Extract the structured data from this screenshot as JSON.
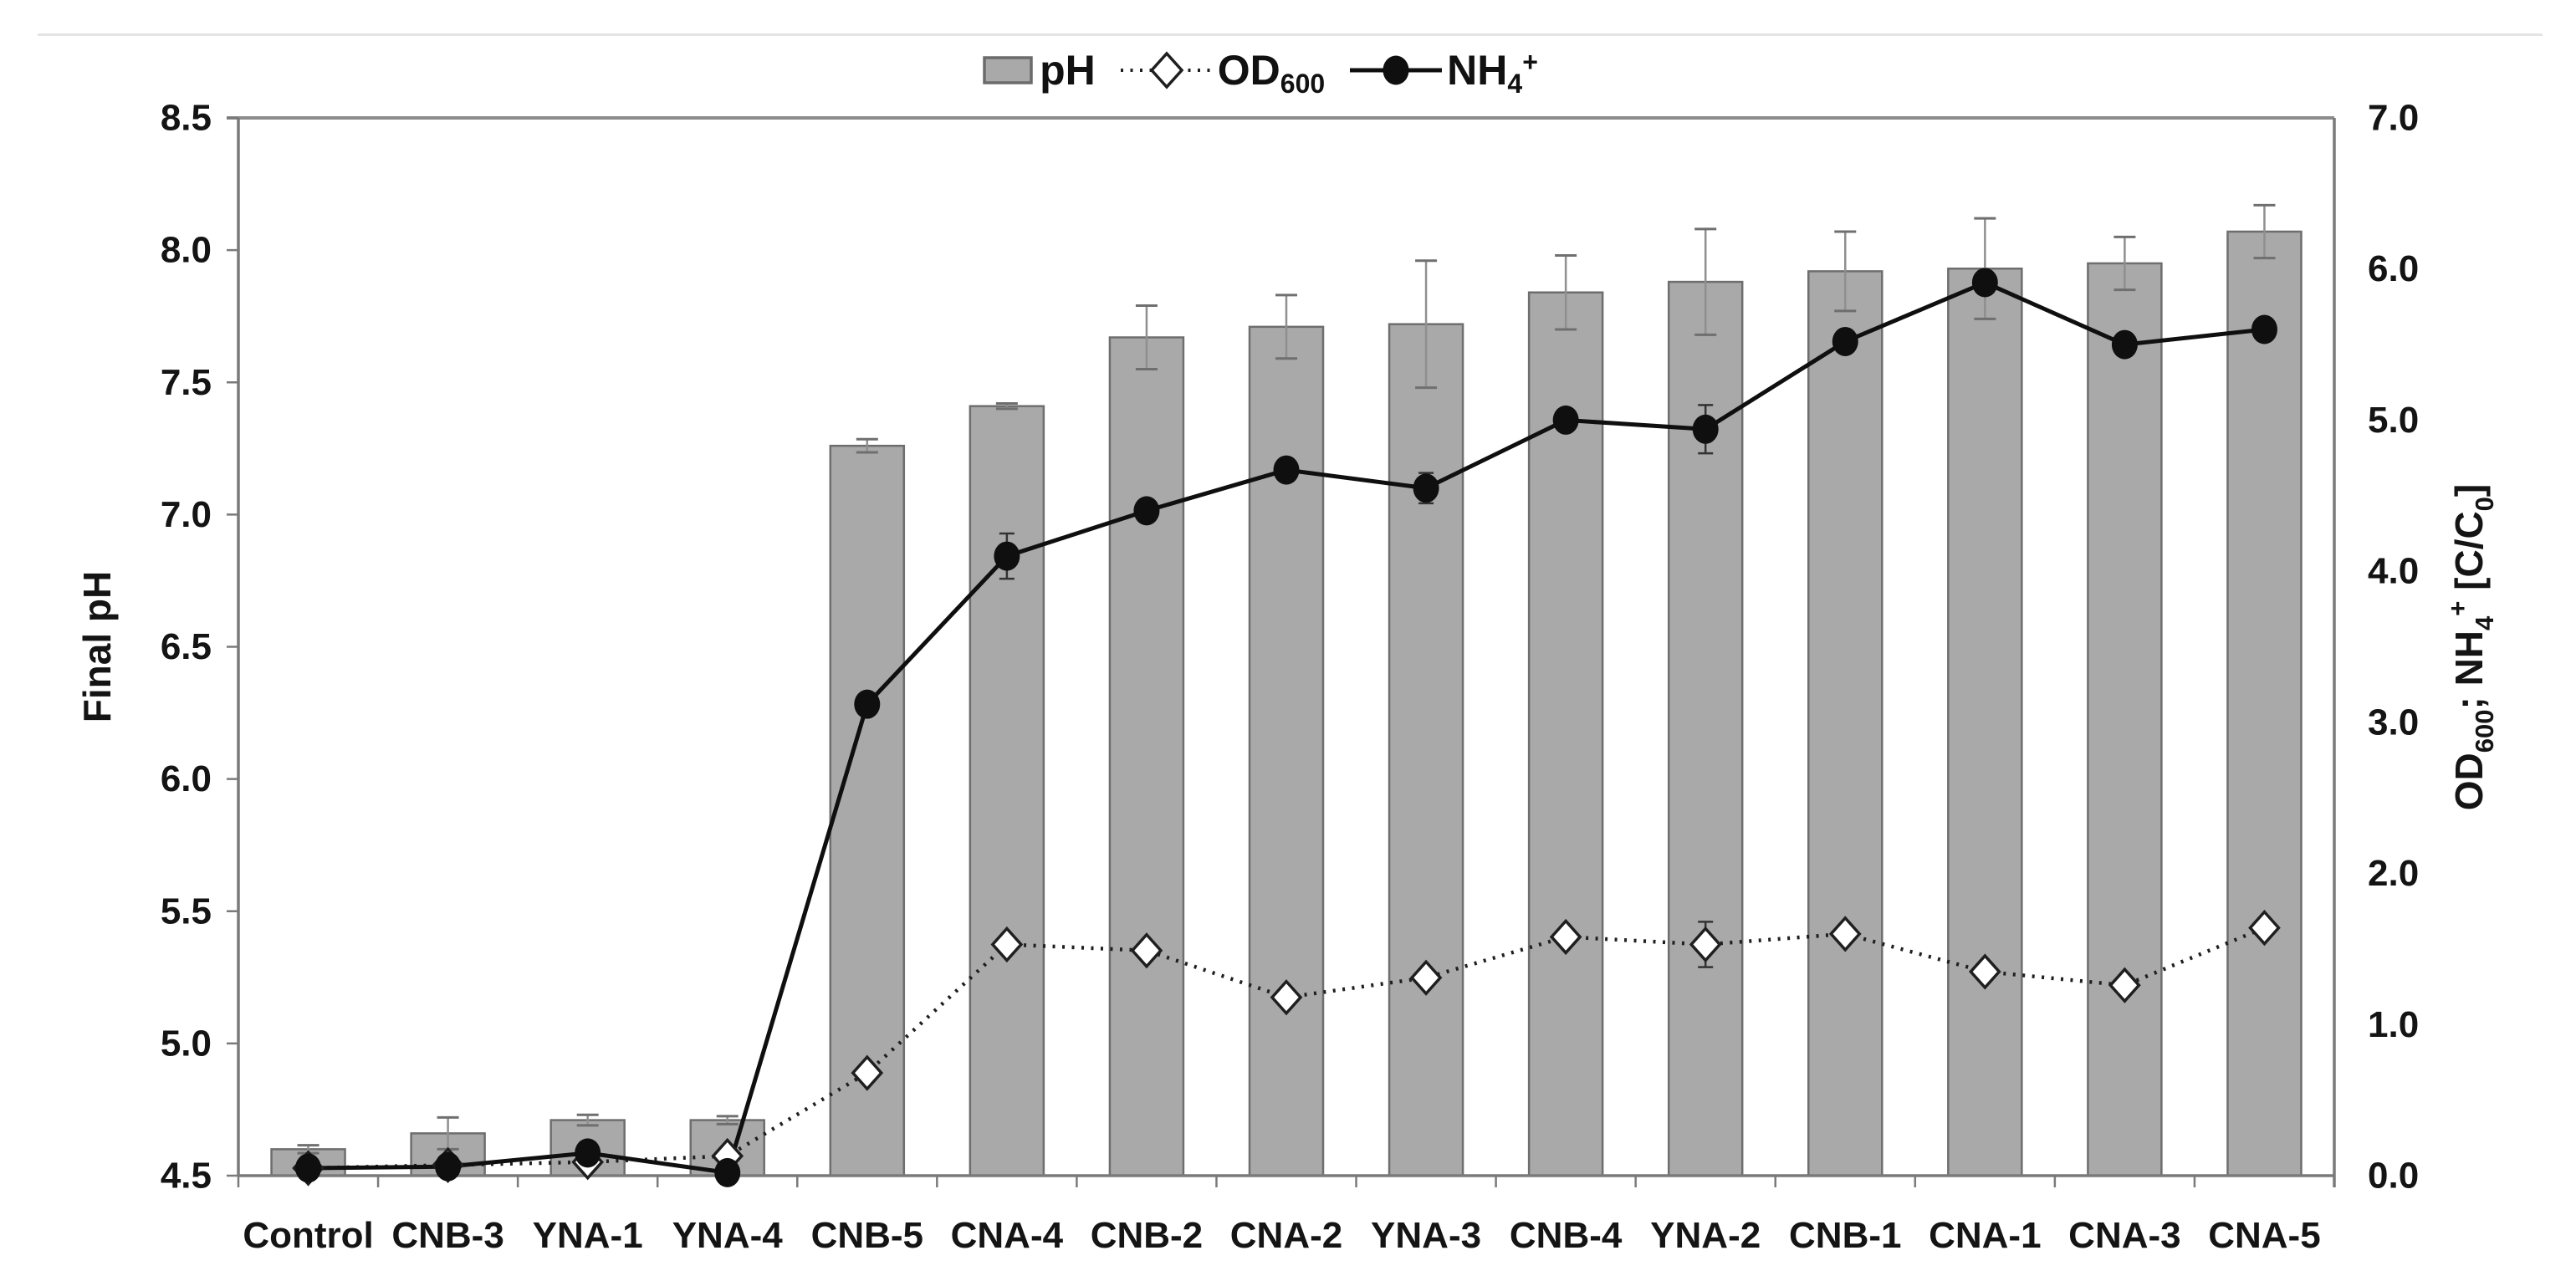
{
  "figure": {
    "background": "#ffffff",
    "top_rule_color": "#e4e4e4"
  },
  "legend": {
    "position": "top-center",
    "items": [
      {
        "key": "ph",
        "swatch": "gray-bar",
        "parts": [
          {
            "t": "pH"
          }
        ]
      },
      {
        "key": "od600",
        "swatch": "dotted-line-open-diamond",
        "parts": [
          {
            "t": "OD"
          },
          {
            "t": "600",
            "sub": true
          }
        ]
      },
      {
        "key": "nh4",
        "swatch": "solid-line-filled-circle",
        "parts": [
          {
            "t": "NH"
          },
          {
            "t": "4",
            "sub": true
          },
          {
            "t": "+",
            "sup": true
          }
        ]
      }
    ]
  },
  "chart_data": {
    "type": "bar",
    "subtype": "combo-bar-plus-two-lines",
    "categories": [
      "Control",
      "CNB-3",
      "YNA-1",
      "YNA-4",
      "CNB-5",
      "CNA-4",
      "CNB-2",
      "CNA-2",
      "YNA-3",
      "CNB-4",
      "YNA-2",
      "CNB-1",
      "CNA-1",
      "CNA-3",
      "CNA-5"
    ],
    "series": [
      {
        "name": "pH",
        "type": "bar",
        "axis": "left",
        "values": [
          4.6,
          4.66,
          4.71,
          4.71,
          7.26,
          7.41,
          7.67,
          7.71,
          7.72,
          7.84,
          7.88,
          7.92,
          7.93,
          7.95,
          8.07
        ],
        "errors": [
          0.015,
          0.06,
          0.02,
          0.015,
          0.025,
          0.01,
          0.12,
          0.12,
          0.24,
          0.14,
          0.2,
          0.15,
          0.19,
          0.1,
          0.1
        ],
        "fill": "#a9a9a9",
        "stroke": "#6e6e6e",
        "error_color": "#8f8f8f"
      },
      {
        "name": "OD600",
        "type": "line",
        "style": "dotted",
        "marker": "open-diamond",
        "axis": "right",
        "values": [
          0.05,
          0.07,
          0.09,
          0.13,
          0.68,
          1.53,
          1.49,
          1.18,
          1.31,
          1.58,
          1.53,
          1.6,
          1.35,
          1.26,
          1.64
        ],
        "errors": [
          0,
          0,
          0,
          0,
          0,
          0,
          0,
          0,
          0,
          0,
          0.15,
          0,
          0,
          0,
          0
        ],
        "color": "#1f1f1f",
        "marker_fill": "#ffffff"
      },
      {
        "name": "NH4+",
        "type": "line",
        "style": "solid",
        "marker": "filled-circle",
        "axis": "right",
        "values": [
          0.05,
          0.06,
          0.15,
          0.02,
          3.12,
          4.1,
          4.4,
          4.67,
          4.55,
          5.0,
          4.94,
          5.52,
          5.91,
          5.5,
          5.6
        ],
        "errors": [
          0,
          0,
          0,
          0,
          0,
          0.15,
          0,
          0,
          0.1,
          0,
          0.16,
          0,
          0,
          0,
          0
        ],
        "color": "#0f0f0f",
        "marker_fill": "#0f0f0f"
      }
    ],
    "left_axis": {
      "title": "Final pH",
      "min": 4.5,
      "max": 8.5,
      "ticks": [
        "8.5",
        "8.0",
        "7.5",
        "7.0",
        "6.5",
        "6.0",
        "5.5",
        "5.0",
        "4.5"
      ]
    },
    "right_axis": {
      "min": 0.0,
      "max": 7.0,
      "ticks": [
        "7.0",
        "6.0",
        "5.0",
        "4.0",
        "3.0",
        "2.0",
        "1.0",
        "0.0"
      ],
      "title_parts": [
        {
          "t": "OD"
        },
        {
          "t": "600",
          "sub": true
        },
        {
          "t": "; NH"
        },
        {
          "t": "4",
          "sub": true
        },
        {
          "t": "+",
          "sup": true
        },
        {
          "t": " [C/C"
        },
        {
          "t": "0",
          "sub": true
        },
        {
          "t": "]"
        }
      ]
    },
    "grid": false,
    "legend_position": "top-center",
    "frame_color": "#7a7a7a",
    "text_color": "#141414"
  }
}
